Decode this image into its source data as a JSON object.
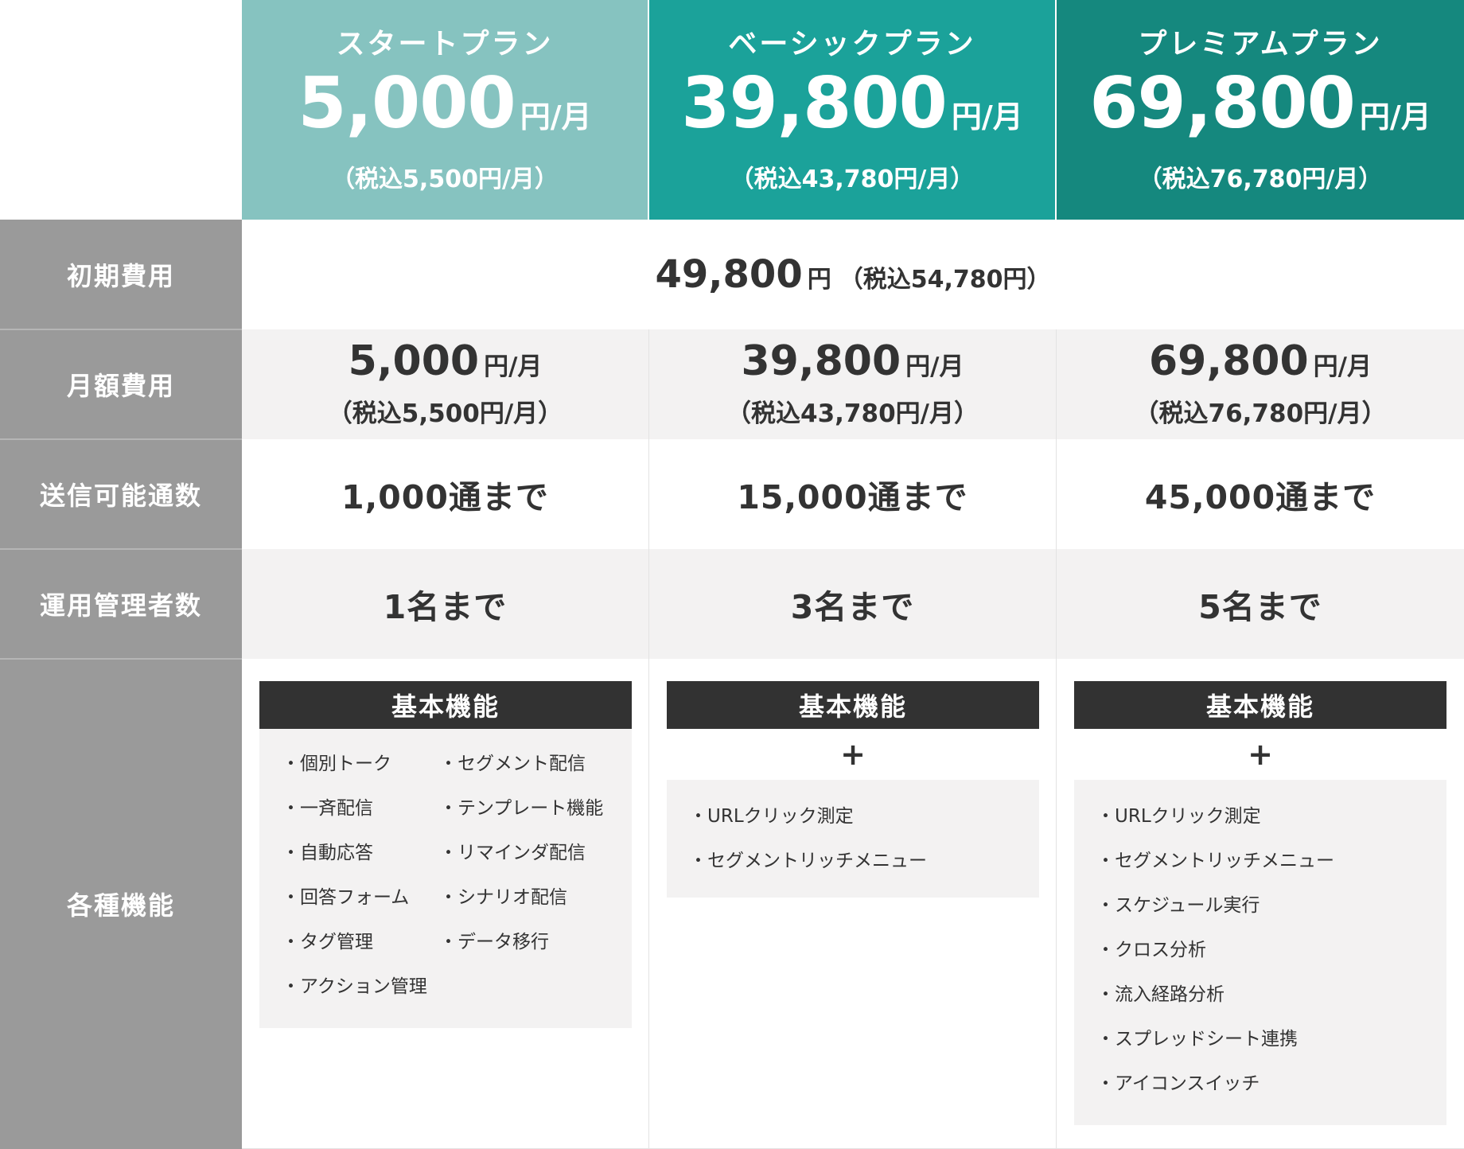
{
  "plans": [
    {
      "name": "スタートプラン",
      "price": "5,000",
      "unit": "円/月",
      "tax": "（税込5,500円/月）",
      "color": "#86c3c0"
    },
    {
      "name": "ベーシックプラン",
      "price": "39,800",
      "unit": "円/月",
      "tax": "（税込43,780円/月）",
      "color": "#1ba29a"
    },
    {
      "name": "プレミアムプラン",
      "price": "69,800",
      "unit": "円/月",
      "tax": "（税込76,780円/月）",
      "color": "#15887e"
    }
  ],
  "rows": {
    "initial": {
      "label": "初期費用",
      "price": "49,800",
      "unit": "円",
      "tax": "（税込54,780円）"
    },
    "monthly": {
      "label": "月額費用",
      "values": [
        {
          "price": "5,000",
          "unit": "円/月",
          "tax": "（税込5,500円/月）"
        },
        {
          "price": "39,800",
          "unit": "円/月",
          "tax": "（税込43,780円/月）"
        },
        {
          "price": "69,800",
          "unit": "円/月",
          "tax": "（税込76,780円/月）"
        }
      ]
    },
    "sends": {
      "label": "送信可能通数",
      "values": [
        "1,000通まで",
        "15,000通まで",
        "45,000通まで"
      ]
    },
    "admins": {
      "label": "運用管理者数",
      "values": [
        "1名まで",
        "3名まで",
        "5名まで"
      ]
    },
    "features": {
      "label": "各種機能",
      "basic_label": "基本機能",
      "plus": "+",
      "basic_items_left": [
        "個別トーク",
        "一斉配信",
        "自動応答",
        "回答フォーム",
        "タグ管理",
        "アクション管理"
      ],
      "basic_items_right": [
        "セグメント配信",
        "テンプレート機能",
        "リマインダ配信",
        "シナリオ配信",
        "データ移行"
      ],
      "basic_extra": [
        "URLクリック測定",
        "セグメントリッチメニュー"
      ],
      "premium_extra": [
        "URLクリック測定",
        "セグメントリッチメニュー",
        "スケジュール実行",
        "クロス分析",
        "流入経路分析",
        "スプレッドシート連携",
        "アイコンスイッチ"
      ]
    }
  },
  "colors": {
    "label_bg": "#9a9a9a",
    "row_alt": "#f3f2f2",
    "dark_bar": "#323232"
  }
}
